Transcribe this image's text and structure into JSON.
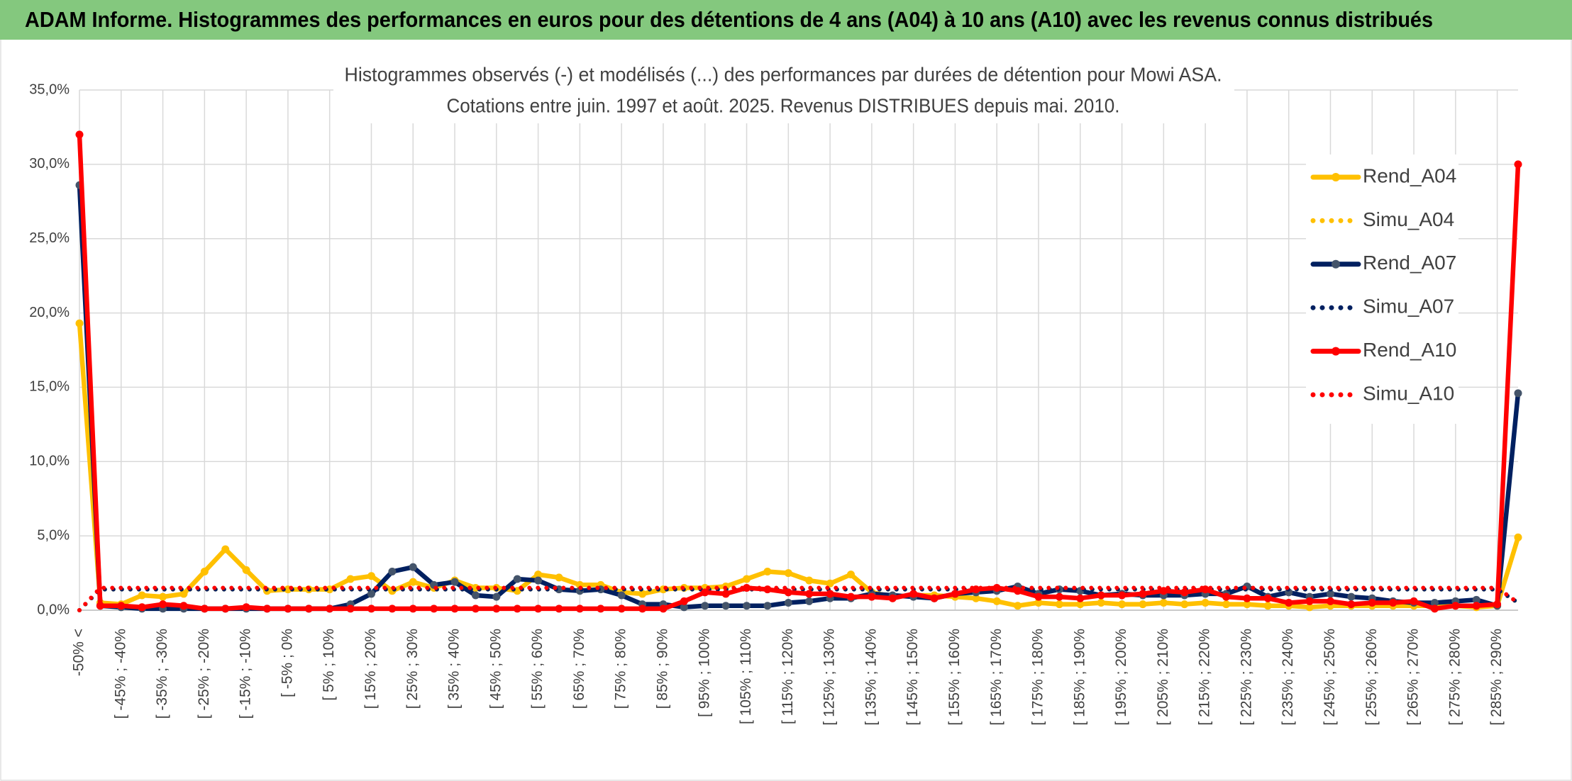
{
  "header": {
    "title": "ADAM Informe. Histogrammes des performances en euros pour des détentions de 4 ans (A04) à 10 ans (A10) avec les revenus connus distribués"
  },
  "chart_data": {
    "type": "line",
    "title": [
      "Histogrammes observés (-) et modélisés (...) des performances par durées de détention pour Mowi ASA.",
      "Cotations entre juin. 1997 et août. 2025. Revenus DISTRIBUES depuis mai. 2010."
    ],
    "categories": [
      "-50% <",
      null,
      "[ -45% ; -40%",
      null,
      "[ -35% ; -30%",
      null,
      "[ -25% ; -20%",
      null,
      "[ -15% ; -10%",
      null,
      "[ -5% ; 0%",
      null,
      "[ 5% ; 10%",
      null,
      "[ 15% ; 20%",
      null,
      "[ 25% ; 30%",
      null,
      "[ 35% ; 40%",
      null,
      "[ 45% ; 50%",
      null,
      "[ 55% ; 60%",
      null,
      "[ 65% ; 70%",
      null,
      "[ 75% ; 80%",
      null,
      "[ 85% ; 90%",
      null,
      "[ 95% ; 100%",
      null,
      "[ 105% ; 110%",
      null,
      "[ 115% ; 120%",
      null,
      "[ 125% ; 130%",
      null,
      "[ 135% ; 140%",
      null,
      "[ 145% ; 150%",
      null,
      "[ 155% ; 160%",
      null,
      "[ 165% ; 170%",
      null,
      "[ 175% ; 180%",
      null,
      "[ 185% ; 190%",
      null,
      "[ 195% ; 200%",
      null,
      "[ 205% ; 210%",
      null,
      "[ 215% ; 220%",
      null,
      "[ 225% ; 230%",
      null,
      "[ 235% ; 240%",
      null,
      "[ 245% ; 250%",
      null,
      "[ 255% ; 260%",
      null,
      "[ 265% ; 270%",
      null,
      "[ 275% ; 280%",
      null,
      "[ 285% ; 290%",
      null
    ],
    "ylim": [
      0,
      35
    ],
    "yticks": [
      {
        "value": 0,
        "label": "0,0%"
      },
      {
        "value": 5,
        "label": "5,0%"
      },
      {
        "value": 10,
        "label": "10,0%"
      },
      {
        "value": 15,
        "label": "15,0%"
      },
      {
        "value": 20,
        "label": "20,0%"
      },
      {
        "value": 25,
        "label": "25,0%"
      },
      {
        "value": 30,
        "label": "30,0%"
      },
      {
        "value": 35,
        "label": "35,0%"
      }
    ],
    "grid": true,
    "legend": "upper right",
    "series": [
      {
        "name": "Rend_A04",
        "color": "#FFC000",
        "marker_color": "#FFC000",
        "style": "solid",
        "values": [
          19.3,
          0.5,
          0.4,
          1.0,
          0.9,
          1.1,
          2.6,
          4.1,
          2.7,
          1.3,
          1.4,
          1.4,
          1.4,
          2.1,
          2.3,
          1.3,
          1.9,
          1.5,
          2.0,
          1.5,
          1.5,
          1.3,
          2.4,
          2.2,
          1.7,
          1.7,
          1.2,
          1.1,
          1.4,
          1.5,
          1.5,
          1.6,
          2.1,
          2.6,
          2.5,
          2.0,
          1.8,
          2.4,
          1.2,
          0.9,
          1.0,
          1.0,
          0.9,
          0.8,
          0.6,
          0.3,
          0.5,
          0.4,
          0.4,
          0.5,
          0.4,
          0.4,
          0.5,
          0.4,
          0.5,
          0.4,
          0.4,
          0.3,
          0.3,
          0.2,
          0.3,
          0.3,
          0.3,
          0.3,
          0.3,
          0.3,
          0.3,
          0.2,
          0.3,
          4.9
        ]
      },
      {
        "name": "Simu_A04",
        "color": "#FFC000",
        "style": "dotted",
        "values": [
          0,
          1.4,
          1.4,
          1.4,
          1.4,
          1.4,
          1.4,
          1.4,
          1.4,
          1.4,
          1.4,
          1.4,
          1.4,
          1.4,
          1.4,
          1.4,
          1.4,
          1.4,
          1.4,
          1.4,
          1.4,
          1.4,
          1.4,
          1.4,
          1.4,
          1.4,
          1.4,
          1.4,
          1.4,
          1.4,
          1.4,
          1.4,
          1.4,
          1.4,
          1.4,
          1.4,
          1.4,
          1.4,
          1.4,
          1.4,
          1.4,
          1.4,
          1.4,
          1.4,
          1.4,
          1.4,
          1.4,
          1.4,
          1.4,
          1.4,
          1.4,
          1.4,
          1.4,
          1.4,
          1.4,
          1.4,
          1.4,
          1.4,
          1.4,
          1.4,
          1.4,
          1.4,
          1.4,
          1.4,
          1.4,
          1.4,
          1.4,
          1.4,
          1.4,
          0.5
        ]
      },
      {
        "name": "Rend_A07",
        "color": "#002060",
        "marker_color": "#44546A",
        "style": "solid",
        "values": [
          28.6,
          0.3,
          0.2,
          0.1,
          0.1,
          0.1,
          0.1,
          0.1,
          0.1,
          0.1,
          0.1,
          0.1,
          0.1,
          0.4,
          1.1,
          2.6,
          2.9,
          1.7,
          1.9,
          1.0,
          0.9,
          2.1,
          2.0,
          1.4,
          1.3,
          1.4,
          1.0,
          0.4,
          0.4,
          0.2,
          0.3,
          0.3,
          0.3,
          0.3,
          0.5,
          0.6,
          0.8,
          0.8,
          1.1,
          1.0,
          0.9,
          0.8,
          1.1,
          1.2,
          1.3,
          1.6,
          1.1,
          1.4,
          1.3,
          1.0,
          1.1,
          1.0,
          1.0,
          1.0,
          1.1,
          1.1,
          1.6,
          0.9,
          1.2,
          0.9,
          1.1,
          0.9,
          0.8,
          0.6,
          0.5,
          0.5,
          0.6,
          0.7,
          0.3,
          14.6
        ]
      },
      {
        "name": "Simu_A07",
        "color": "#002060",
        "style": "dotted",
        "values": [
          0,
          1.4,
          1.4,
          1.4,
          1.4,
          1.4,
          1.4,
          1.4,
          1.4,
          1.4,
          1.4,
          1.4,
          1.4,
          1.4,
          1.4,
          1.4,
          1.4,
          1.4,
          1.4,
          1.4,
          1.4,
          1.4,
          1.4,
          1.4,
          1.4,
          1.4,
          1.4,
          1.4,
          1.4,
          1.4,
          1.4,
          1.4,
          1.4,
          1.4,
          1.4,
          1.4,
          1.4,
          1.4,
          1.4,
          1.4,
          1.4,
          1.4,
          1.4,
          1.4,
          1.4,
          1.4,
          1.4,
          1.4,
          1.4,
          1.4,
          1.4,
          1.4,
          1.4,
          1.4,
          1.4,
          1.4,
          1.4,
          1.4,
          1.4,
          1.4,
          1.4,
          1.4,
          1.4,
          1.4,
          1.4,
          1.4,
          1.4,
          1.4,
          1.4,
          0.5
        ]
      },
      {
        "name": "Rend_A10",
        "color": "#FF0000",
        "marker_color": "#FF0000",
        "style": "solid",
        "values": [
          32.0,
          0.3,
          0.3,
          0.2,
          0.4,
          0.3,
          0.1,
          0.1,
          0.2,
          0.1,
          0.1,
          0.1,
          0.1,
          0.1,
          0.1,
          0.1,
          0.1,
          0.1,
          0.1,
          0.1,
          0.1,
          0.1,
          0.1,
          0.1,
          0.1,
          0.1,
          0.1,
          0.1,
          0.1,
          0.6,
          1.2,
          1.1,
          1.5,
          1.4,
          1.2,
          1.1,
          1.1,
          0.9,
          0.9,
          0.8,
          1.1,
          0.8,
          1.1,
          1.4,
          1.5,
          1.3,
          0.9,
          0.9,
          0.8,
          1.0,
          1.0,
          1.1,
          1.3,
          1.2,
          1.4,
          0.9,
          0.8,
          0.8,
          0.5,
          0.6,
          0.6,
          0.4,
          0.5,
          0.5,
          0.6,
          0.1,
          0.3,
          0.3,
          0.4,
          30.0
        ]
      },
      {
        "name": "Simu_A10",
        "color": "#FF0000",
        "style": "dotted",
        "values": [
          0,
          1.5,
          1.5,
          1.5,
          1.5,
          1.5,
          1.5,
          1.5,
          1.5,
          1.5,
          1.5,
          1.5,
          1.5,
          1.5,
          1.5,
          1.5,
          1.5,
          1.5,
          1.5,
          1.5,
          1.5,
          1.5,
          1.5,
          1.5,
          1.5,
          1.5,
          1.5,
          1.5,
          1.5,
          1.5,
          1.5,
          1.5,
          1.5,
          1.5,
          1.5,
          1.5,
          1.5,
          1.5,
          1.5,
          1.5,
          1.5,
          1.5,
          1.5,
          1.5,
          1.5,
          1.5,
          1.5,
          1.5,
          1.5,
          1.5,
          1.5,
          1.5,
          1.5,
          1.5,
          1.5,
          1.5,
          1.5,
          1.5,
          1.5,
          1.5,
          1.5,
          1.5,
          1.5,
          1.5,
          1.5,
          1.5,
          1.5,
          1.5,
          1.5,
          0.5
        ]
      }
    ]
  }
}
